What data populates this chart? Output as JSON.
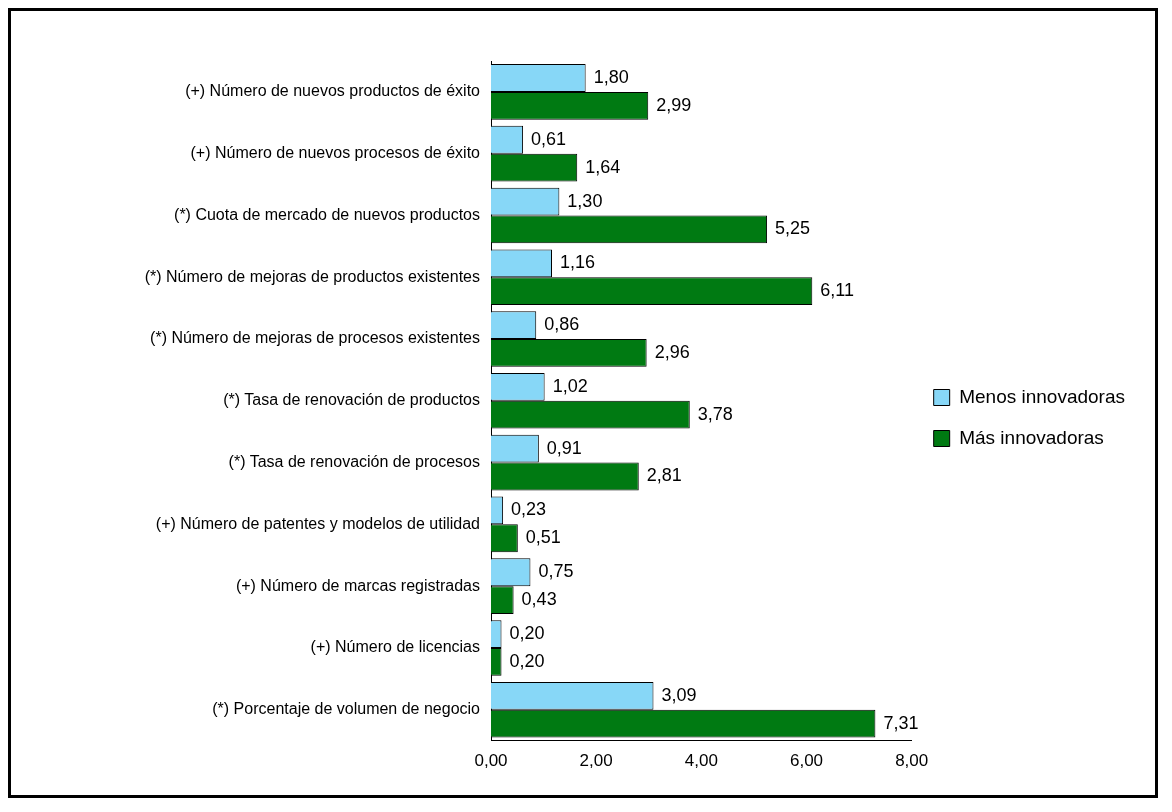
{
  "chart_data": {
    "type": "bar",
    "orientation": "horizontal",
    "categories": [
      "(+) Número de nuevos productos de éxito",
      "(+) Número de nuevos procesos de éxito",
      "(*) Cuota de mercado de nuevos productos",
      "(*) Número de mejoras de productos existentes",
      "(*) Número de mejoras de procesos existentes",
      "(*) Tasa de renovación de productos",
      "(*) Tasa de renovación de procesos",
      "(+) Número de patentes y modelos de utilidad",
      "(+) Número de marcas registradas",
      "(+) Número de licencias",
      "(*) Porcentaje de volumen de negocio"
    ],
    "series": [
      {
        "name": "Menos innovadoras",
        "color": "#87d7f7",
        "values": [
          1.8,
          0.61,
          1.3,
          1.16,
          0.86,
          1.02,
          0.91,
          0.23,
          0.75,
          0.2,
          3.09
        ],
        "value_labels": [
          "1,80",
          "0,61",
          "1,30",
          "1,16",
          "0,86",
          "1,02",
          "0,91",
          "0,23",
          "0,75",
          "0,20",
          "3,09"
        ]
      },
      {
        "name": "Más innovadoras",
        "color": "#007a12",
        "values": [
          2.99,
          1.64,
          5.25,
          6.11,
          2.96,
          3.78,
          2.81,
          0.51,
          0.43,
          0.2,
          7.31
        ],
        "value_labels": [
          "2,99",
          "1,64",
          "5,25",
          "6,11",
          "2,96",
          "3,78",
          "2,81",
          "0,51",
          "0,43",
          "0,20",
          "7,31"
        ]
      }
    ],
    "xlim": [
      0,
      8
    ],
    "xticks": [
      {
        "value": 0,
        "label": "0,00"
      },
      {
        "value": 2,
        "label": "2,00"
      },
      {
        "value": 4,
        "label": "4,00"
      },
      {
        "value": 6,
        "label": "6,00"
      },
      {
        "value": 8,
        "label": "8,00"
      }
    ],
    "grid": false,
    "legend": "right"
  }
}
